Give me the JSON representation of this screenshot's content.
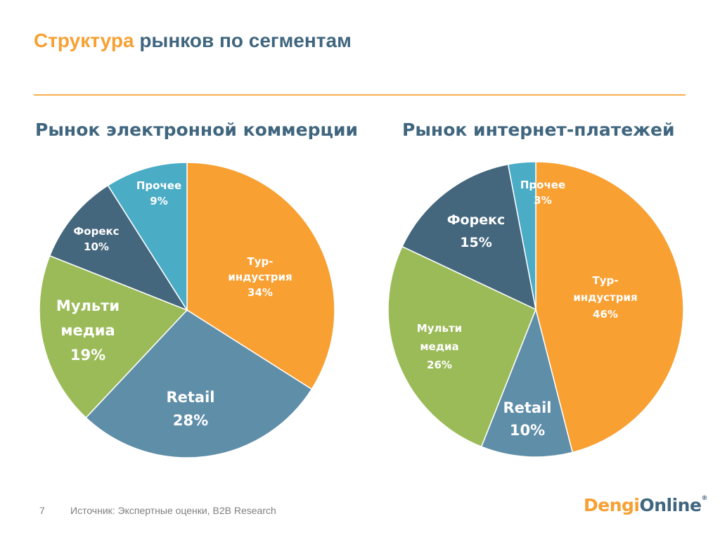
{
  "slide": {
    "title_accent": "Структура",
    "title_rest": "рынков по сегментам",
    "page_number": "7",
    "source": "Источник: Экспертные оценки, B2B Research",
    "logo_part1": "Dengi",
    "logo_part2": "Online",
    "logo_mark": "®"
  },
  "colors": {
    "orange": "#f9a033",
    "steel_blue": "#5f8ea9",
    "green": "#9bbb59",
    "dark_blue": "#44677d",
    "light_blue": "#4bacc6"
  },
  "chart_data": [
    {
      "type": "pie",
      "title": "Рынок электронной коммерции",
      "slices": [
        {
          "label": [
            "Тур-",
            "индустрия",
            "34%"
          ],
          "value": 34,
          "color": "#f9a033"
        },
        {
          "label": [
            "Retail",
            "28%"
          ],
          "value": 28,
          "color": "#5f8ea9"
        },
        {
          "label": [
            "Мульти",
            "медиа",
            "19%"
          ],
          "value": 19,
          "color": "#9bbb59"
        },
        {
          "label": [
            "Форекс",
            "10%"
          ],
          "value": 10,
          "color": "#44677d"
        },
        {
          "label": [
            "Прочее",
            "9%"
          ],
          "value": 9,
          "color": "#4bacc6"
        }
      ]
    },
    {
      "type": "pie",
      "title": "Рынок интернет-платежей",
      "slices": [
        {
          "label": [
            "Тур-",
            "индустрия",
            "46%"
          ],
          "value": 46,
          "color": "#f9a033"
        },
        {
          "label": [
            "Retail",
            "10%"
          ],
          "value": 10,
          "color": "#5f8ea9"
        },
        {
          "label": [
            "Мульти",
            "медиа",
            "26%"
          ],
          "value": 26,
          "color": "#9bbb59"
        },
        {
          "label": [
            "Форекс",
            "15%"
          ],
          "value": 15,
          "color": "#44677d"
        },
        {
          "label": [
            "Прочее",
            "3%"
          ],
          "value": 3,
          "color": "#4bacc6"
        }
      ]
    }
  ]
}
